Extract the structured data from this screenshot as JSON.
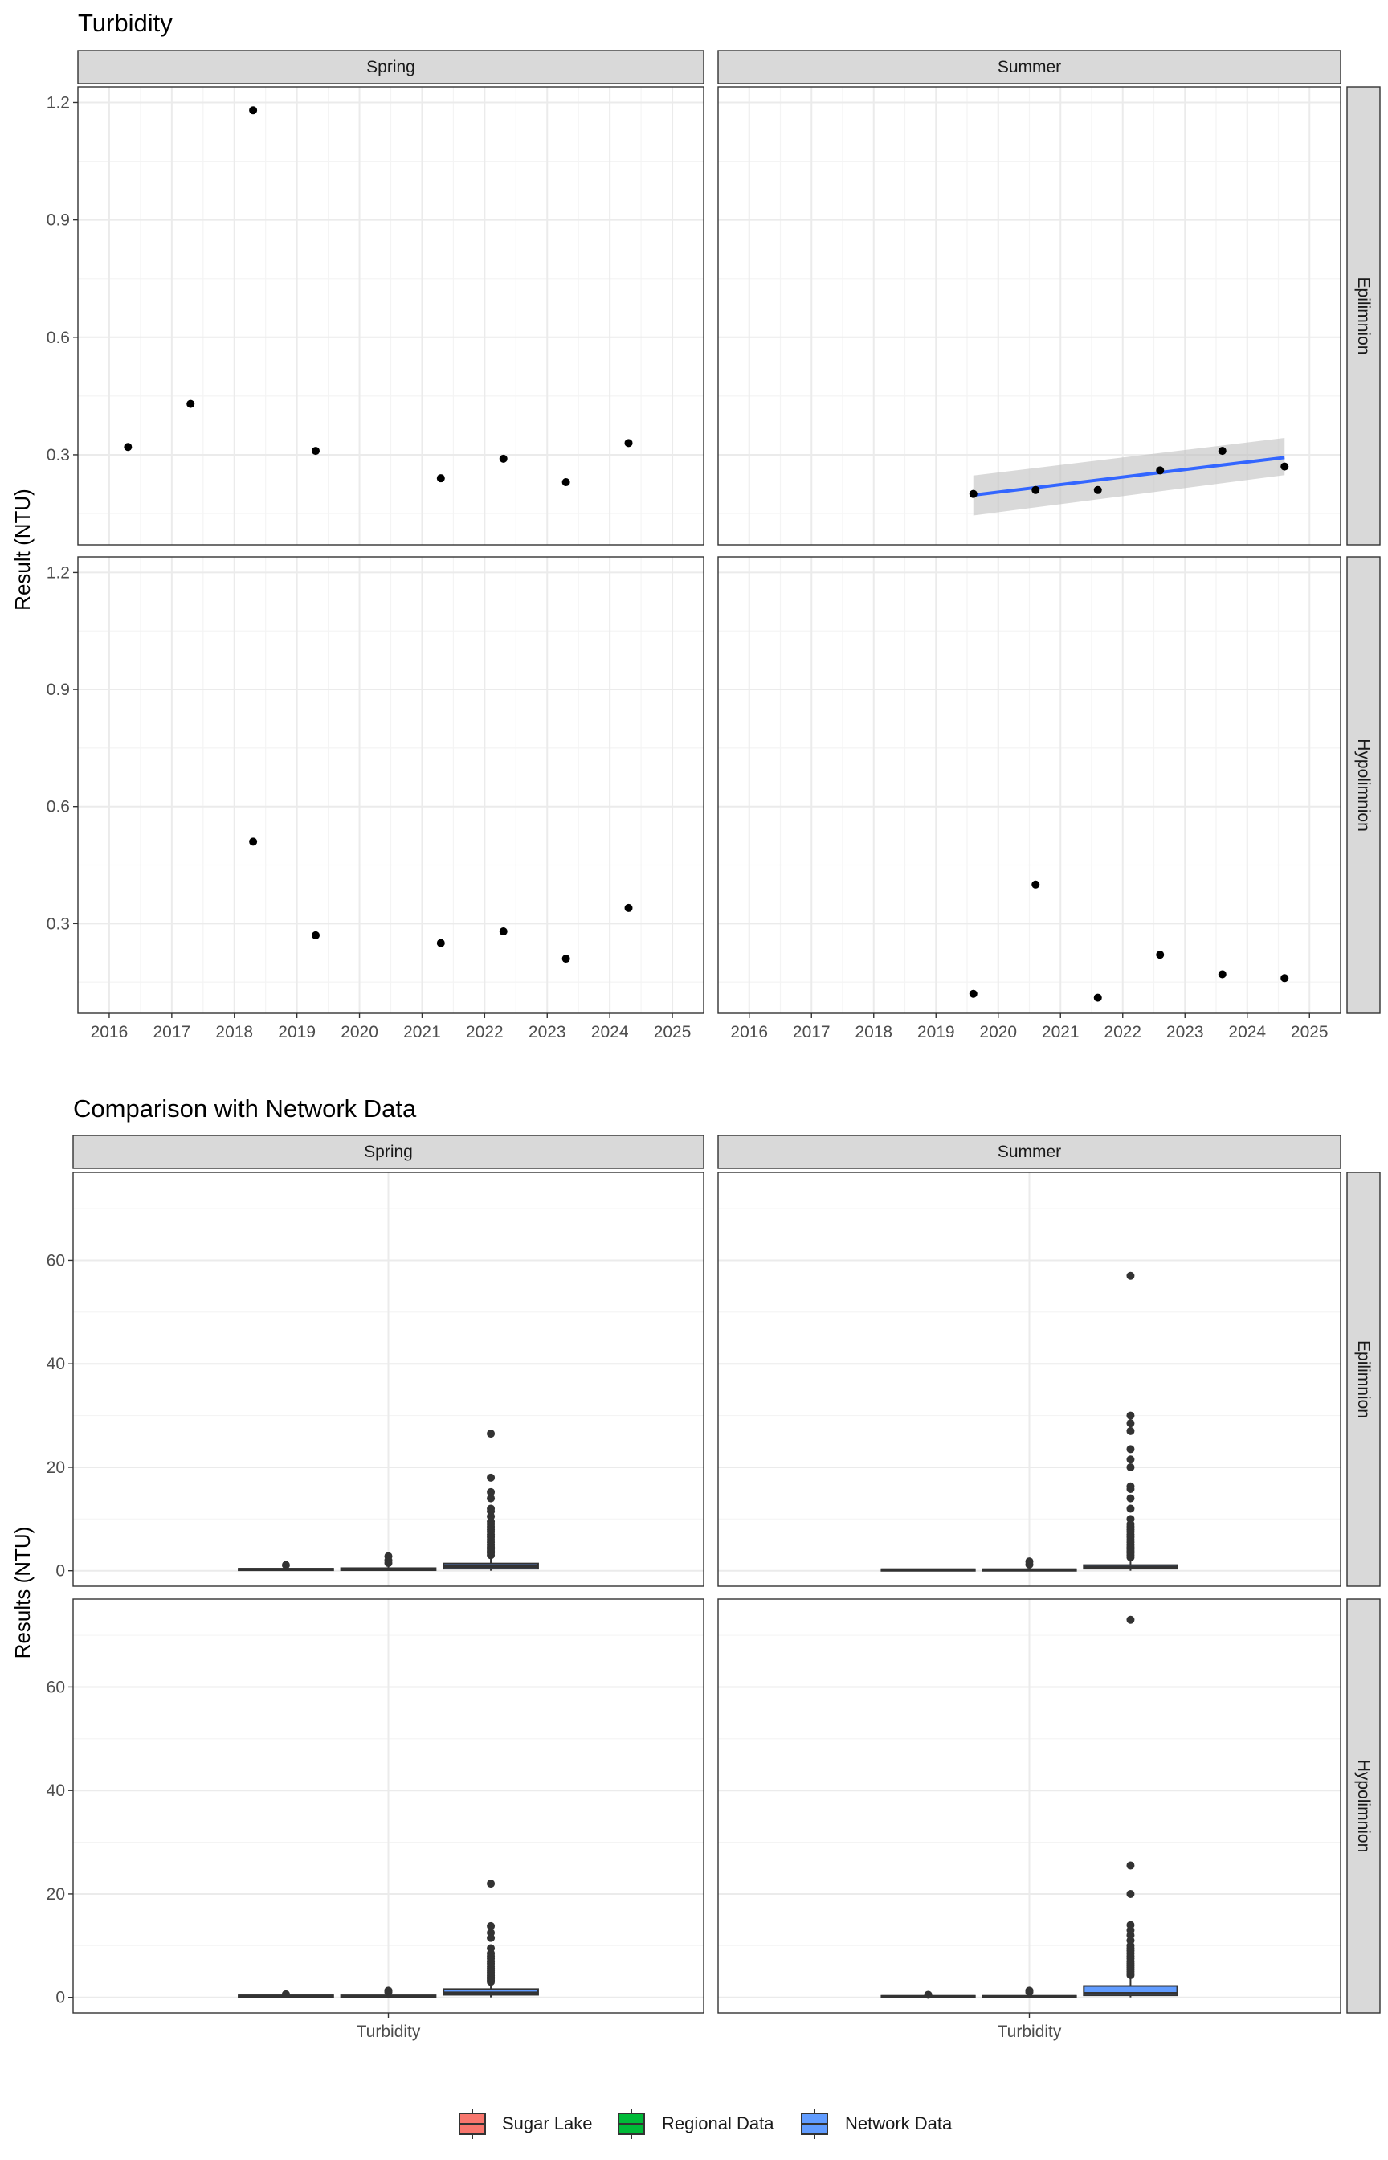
{
  "chart_data": [
    {
      "type": "scatter",
      "title": "Turbidity",
      "ylabel": "Result (NTU)",
      "xlabel": "",
      "x_ticks": [
        "2016",
        "2017",
        "2018",
        "2019",
        "2020",
        "2021",
        "2022",
        "2023",
        "2024",
        "2025"
      ],
      "xlim": [
        2015.5,
        2025.5
      ],
      "y_ticks": [
        "0.3",
        "0.6",
        "0.9",
        "1.2"
      ],
      "ylim": [
        0.07,
        1.24
      ],
      "grid": true,
      "column_facets": [
        "Spring",
        "Summer"
      ],
      "row_facets": [
        "Epilimnion",
        "Hypolimnion"
      ],
      "panels": [
        {
          "season": "Spring",
          "layer": "Epilimnion",
          "points": [
            [
              2016.3,
              0.32
            ],
            [
              2017.3,
              0.43
            ],
            [
              2018.3,
              1.18
            ],
            [
              2019.3,
              0.31
            ],
            [
              2021.3,
              0.24
            ],
            [
              2022.3,
              0.29
            ],
            [
              2023.3,
              0.23
            ],
            [
              2024.3,
              0.33
            ]
          ]
        },
        {
          "season": "Summer",
          "layer": "Epilimnion",
          "points": [
            [
              2019.6,
              0.2
            ],
            [
              2020.6,
              0.21
            ],
            [
              2021.6,
              0.21
            ],
            [
              2022.6,
              0.26
            ],
            [
              2023.6,
              0.31
            ],
            [
              2024.6,
              0.27
            ]
          ],
          "trend": {
            "x": [
              2019.6,
              2024.6
            ],
            "y": [
              0.197,
              0.293
            ],
            "band_lower": [
              0.145,
              0.248
            ],
            "band_upper": [
              0.247,
              0.343
            ],
            "color": "#3366ff",
            "band_color": "#bfbfbf"
          }
        },
        {
          "season": "Spring",
          "layer": "Hypolimnion",
          "points": [
            [
              2018.3,
              0.51
            ],
            [
              2019.3,
              0.27
            ],
            [
              2021.3,
              0.25
            ],
            [
              2022.3,
              0.28
            ],
            [
              2023.3,
              0.21
            ],
            [
              2024.3,
              0.34
            ]
          ]
        },
        {
          "season": "Summer",
          "layer": "Hypolimnion",
          "points": [
            [
              2019.6,
              0.12
            ],
            [
              2020.6,
              0.4
            ],
            [
              2021.6,
              0.11
            ],
            [
              2022.6,
              0.22
            ],
            [
              2023.6,
              0.17
            ],
            [
              2024.6,
              0.16
            ]
          ]
        }
      ]
    },
    {
      "type": "box",
      "title": "Comparison with Network Data",
      "ylabel": "Results (NTU)",
      "xlabel": "",
      "category": "Turbidity",
      "y_ticks": [
        "0",
        "20",
        "40",
        "60"
      ],
      "ylim": [
        -3,
        77
      ],
      "grid": true,
      "column_facets": [
        "Spring",
        "Summer"
      ],
      "row_facets": [
        "Epilimnion",
        "Hypolimnion"
      ],
      "legend_position": "bottom",
      "groups": [
        {
          "name": "Sugar Lake",
          "color": "#f8766d"
        },
        {
          "name": "Regional Data",
          "color": "#00ba38"
        },
        {
          "name": "Network Data",
          "color": "#619cff"
        }
      ],
      "panels": [
        {
          "season": "Spring",
          "layer": "Epilimnion",
          "boxes": [
            {
              "q1": 0.2,
              "median": 0.3,
              "q3": 0.4,
              "whisker_low": 0.1,
              "whisker_high": 0.6,
              "outliers": [
                1.1
              ]
            },
            {
              "q1": 0.1,
              "median": 0.2,
              "q3": 0.5,
              "whisker_low": 0.0,
              "whisker_high": 0.9,
              "outliers": [
                1.5,
                2.0,
                2.8
              ]
            },
            {
              "q1": 0.4,
              "median": 0.8,
              "q3": 1.4,
              "whisker_low": 0.0,
              "whisker_high": 2.8,
              "outliers": [
                3.0,
                3.4,
                3.8,
                4.2,
                4.6,
                5.0,
                5.5,
                6.0,
                6.5,
                7.0,
                7.5,
                8.0,
                8.5,
                9.0,
                9.5,
                10.5,
                11.5,
                12.0,
                14.0,
                15.2,
                18.0,
                26.5
              ]
            }
          ]
        },
        {
          "season": "Summer",
          "layer": "Epilimnion",
          "boxes": [
            {
              "q1": 0.1,
              "median": 0.2,
              "q3": 0.3,
              "whisker_low": 0.1,
              "whisker_high": 0.4,
              "outliers": []
            },
            {
              "q1": 0.1,
              "median": 0.2,
              "q3": 0.3,
              "whisker_low": 0.0,
              "whisker_high": 0.8,
              "outliers": [
                1.2,
                1.8
              ]
            },
            {
              "q1": 0.4,
              "median": 0.7,
              "q3": 1.1,
              "whisker_low": 0.0,
              "whisker_high": 2.4,
              "outliers": [
                2.6,
                3.0,
                3.4,
                3.8,
                4.2,
                4.6,
                5.0,
                5.5,
                6.0,
                6.5,
                7.0,
                7.5,
                8.0,
                8.5,
                9.0,
                10.0,
                12.0,
                14.0,
                15.8,
                16.3,
                20.0,
                21.5,
                23.5,
                27.0,
                28.5,
                30.0,
                57.0
              ]
            }
          ]
        },
        {
          "season": "Spring",
          "layer": "Hypolimnion",
          "boxes": [
            {
              "q1": 0.2,
              "median": 0.3,
              "q3": 0.4,
              "whisker_low": 0.1,
              "whisker_high": 0.5,
              "outliers": [
                0.6
              ]
            },
            {
              "q1": 0.1,
              "median": 0.2,
              "q3": 0.4,
              "whisker_low": 0.0,
              "whisker_high": 0.8,
              "outliers": [
                1.0,
                1.3
              ]
            },
            {
              "q1": 0.5,
              "median": 0.9,
              "q3": 1.6,
              "whisker_low": 0.0,
              "whisker_high": 2.8,
              "outliers": [
                3.0,
                3.3,
                3.6,
                3.9,
                4.2,
                4.5,
                4.8,
                5.2,
                5.6,
                6.0,
                6.5,
                7.0,
                7.5,
                8.0,
                8.5,
                9.5,
                11.5,
                12.5,
                13.8,
                22.0
              ]
            }
          ]
        },
        {
          "season": "Summer",
          "layer": "Hypolimnion",
          "boxes": [
            {
              "q1": 0.1,
              "median": 0.2,
              "q3": 0.3,
              "whisker_low": 0.0,
              "whisker_high": 0.4,
              "outliers": [
                0.5
              ]
            },
            {
              "q1": 0.1,
              "median": 0.2,
              "q3": 0.3,
              "whisker_low": 0.0,
              "whisker_high": 0.8,
              "outliers": [
                1.0,
                1.3
              ]
            },
            {
              "q1": 0.4,
              "median": 0.8,
              "q3": 2.2,
              "whisker_low": 0.0,
              "whisker_high": 4.0,
              "outliers": [
                4.3,
                4.6,
                5.0,
                5.4,
                5.8,
                6.2,
                6.6,
                7.0,
                7.5,
                8.0,
                8.5,
                9.0,
                9.5,
                10.0,
                11.0,
                12.0,
                13.0,
                14.0,
                20.0,
                25.5,
                73.0
              ]
            }
          ]
        }
      ]
    }
  ],
  "colors": {
    "panel_border": "#333333",
    "strip_fill": "#d9d9d9",
    "grid_major": "#ebebeb",
    "grid_minor": "#f4f4f4",
    "point": "#000000",
    "box_outlier": "#333333",
    "axis_text": "#4d4d4d",
    "title_text": "#000000"
  }
}
